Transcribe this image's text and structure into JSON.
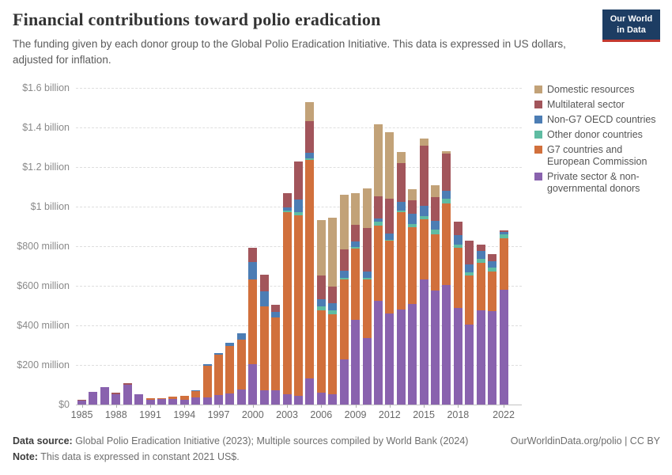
{
  "header": {
    "title": "Financial contributions toward polio eradication",
    "subtitle": "The funding given by each donor group to the Global Polio Eradication Initiative. This data is expressed in US dollars, adjusted for inflation.",
    "logo_line1": "Our World",
    "logo_line2": "in Data",
    "logo_bg_color": "#1d3d63",
    "logo_accent_color": "#c4392f"
  },
  "legend": {
    "items": [
      {
        "label": "Domestic resources",
        "color": "#c2a278"
      },
      {
        "label": "Multilateral sector",
        "color": "#a2555b"
      },
      {
        "label": "Non-G7 OECD countries",
        "color": "#4c7db4"
      },
      {
        "label": "Other donor countries",
        "color": "#5fbca2"
      },
      {
        "label": "G7 countries and European Commission",
        "color": "#d1703c"
      },
      {
        "label": "Private sector & non-governmental donors",
        "color": "#8962ae"
      }
    ]
  },
  "chart_data": {
    "type": "bar",
    "stacked": true,
    "unit": "US$ millions (constant 2021 US$)",
    "title": "Financial contributions toward polio eradication",
    "xlabel": "",
    "ylabel": "",
    "ylim": [
      0,
      1600
    ],
    "grid": "dashed horizontal",
    "legend_position": "right",
    "x": [
      1985,
      1986,
      1987,
      1988,
      1989,
      1990,
      1991,
      1992,
      1993,
      1994,
      1995,
      1996,
      1997,
      1998,
      1999,
      2000,
      2001,
      2002,
      2003,
      2004,
      2005,
      2006,
      2007,
      2008,
      2009,
      2010,
      2011,
      2012,
      2013,
      2014,
      2015,
      2016,
      2017,
      2018,
      2019,
      2020,
      2021,
      2022
    ],
    "x_tick_years": [
      1985,
      1988,
      1991,
      1994,
      1997,
      2000,
      2003,
      2006,
      2009,
      2012,
      2015,
      2018,
      2022
    ],
    "y_ticks": [
      {
        "value": 0,
        "label": "$0"
      },
      {
        "value": 200,
        "label": "$200 million"
      },
      {
        "value": 400,
        "label": "$400 million"
      },
      {
        "value": 600,
        "label": "$600 million"
      },
      {
        "value": 800,
        "label": "$800 million"
      },
      {
        "value": 1000,
        "label": "$1 billion"
      },
      {
        "value": 1200,
        "label": "$1.2 billion"
      },
      {
        "value": 1400,
        "label": "$1.4 billion"
      },
      {
        "value": 1600,
        "label": "$1.6 billion"
      }
    ],
    "series": [
      {
        "name": "Private sector & non-governmental donors",
        "color": "#8962ae",
        "values": [
          18,
          64,
          88,
          53,
          100,
          50,
          22,
          26,
          28,
          24,
          35,
          37,
          46,
          55,
          77,
          205,
          71,
          71,
          50,
          43,
          133,
          59,
          51,
          228,
          428,
          334,
          525,
          460,
          480,
          506,
          631,
          576,
          605,
          489,
          404,
          475,
          470,
          581
        ]
      },
      {
        "name": "G7 countries and European Commission",
        "color": "#d1703c",
        "values": [
          0,
          0,
          0,
          0,
          0,
          0,
          11,
          7,
          10,
          21,
          33,
          158,
          205,
          240,
          250,
          426,
          424,
          369,
          920,
          913,
          1100,
          418,
          406,
          405,
          360,
          297,
          379,
          367,
          492,
          389,
          304,
          283,
          412,
          301,
          247,
          242,
          203,
          259
        ]
      },
      {
        "name": "Other donor countries",
        "color": "#5fbca2",
        "values": [
          0,
          0,
          0,
          0,
          0,
          0,
          0,
          0,
          0,
          0,
          0,
          0,
          0,
          0,
          0,
          0,
          0,
          0,
          8,
          14,
          8,
          20,
          20,
          8,
          6,
          8,
          20,
          6,
          6,
          16,
          16,
          26,
          21,
          16,
          17,
          17,
          17,
          18
        ]
      },
      {
        "name": "Non-G7 OECD countries",
        "color": "#4c7db4",
        "values": [
          0,
          0,
          0,
          0,
          0,
          0,
          0,
          0,
          0,
          0,
          3,
          9,
          10,
          18,
          34,
          90,
          78,
          28,
          17,
          64,
          30,
          35,
          33,
          33,
          29,
          33,
          16,
          29,
          45,
          53,
          53,
          44,
          40,
          48,
          40,
          42,
          33,
          13
        ]
      },
      {
        "name": "Multilateral sector",
        "color": "#a2555b",
        "values": [
          7,
          0,
          0,
          5,
          6,
          0,
          0,
          0,
          0,
          0,
          0,
          0,
          0,
          0,
          0,
          70,
          82,
          36,
          74,
          192,
          160,
          120,
          86,
          110,
          83,
          218,
          110,
          178,
          195,
          66,
          304,
          119,
          190,
          69,
          121,
          33,
          37,
          8
        ]
      },
      {
        "name": "Domestic resources",
        "color": "#c2a278",
        "values": [
          0,
          0,
          0,
          0,
          0,
          0,
          0,
          0,
          0,
          0,
          0,
          0,
          0,
          0,
          0,
          0,
          0,
          0,
          0,
          0,
          97,
          279,
          347,
          277,
          161,
          201,
          363,
          334,
          57,
          57,
          34,
          59,
          11,
          0,
          0,
          0,
          0,
          0
        ]
      }
    ]
  },
  "footer": {
    "data_source_label": "Data source:",
    "data_source_text": " Global Polio Eradication Initiative (2023); Multiple sources compiled by World Bank (2024)",
    "right_text": "OurWorldinData.org/polio | CC BY",
    "note_label": "Note:",
    "note_text": " This data is expressed in constant 2021 US$."
  }
}
